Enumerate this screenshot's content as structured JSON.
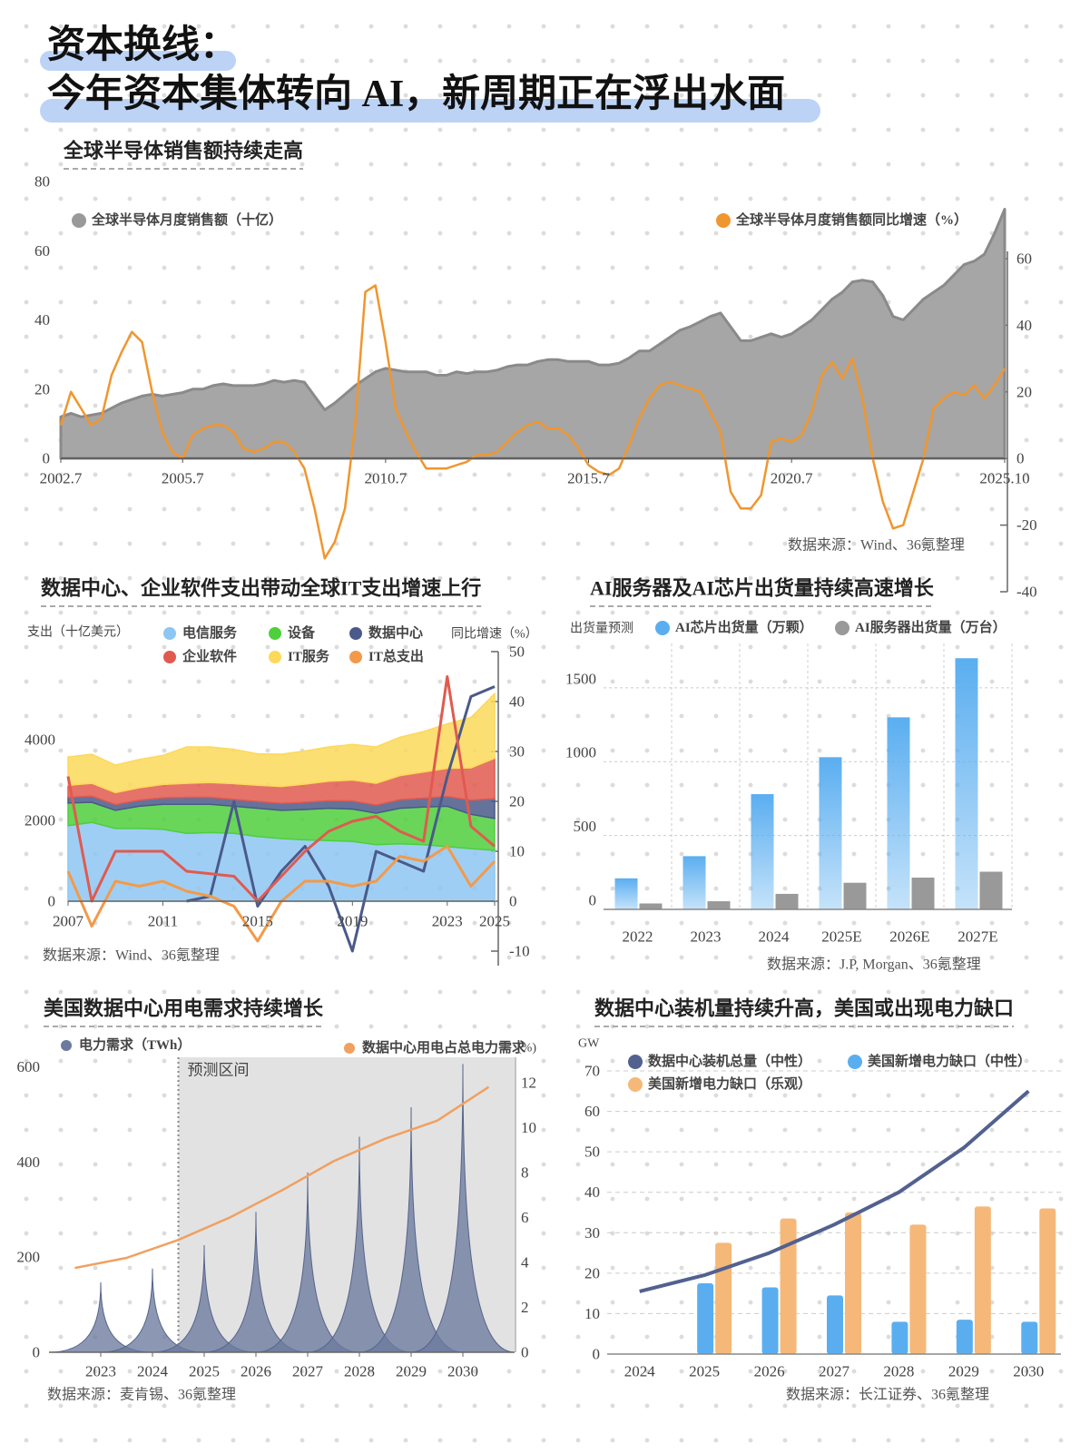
{
  "header": {
    "title_lines": [
      "资本换线：",
      "今年资本集体转向 AI，新周期正在浮出水面"
    ]
  },
  "chart_data": [
    {
      "type": "area",
      "title": "全球半导体销售额持续走高",
      "source": "数据来源：Wind、36氪整理",
      "x": [
        2002.5,
        2002.75,
        2003,
        2003.25,
        2003.5,
        2003.75,
        2004,
        2004.25,
        2004.5,
        2004.75,
        2005,
        2005.25,
        2005.5,
        2005.75,
        2006,
        2006.25,
        2006.5,
        2006.75,
        2007,
        2007.25,
        2007.5,
        2007.75,
        2008,
        2008.25,
        2008.5,
        2008.75,
        2009,
        2009.25,
        2009.5,
        2009.75,
        2010,
        2010.25,
        2010.5,
        2010.75,
        2011,
        2011.25,
        2011.5,
        2011.75,
        2012,
        2012.25,
        2012.5,
        2012.75,
        2013,
        2013.25,
        2013.5,
        2013.75,
        2014,
        2014.25,
        2014.5,
        2014.75,
        2015,
        2015.25,
        2015.5,
        2015.75,
        2016,
        2016.25,
        2016.5,
        2016.75,
        2017,
        2017.25,
        2017.5,
        2017.75,
        2018,
        2018.25,
        2018.5,
        2018.75,
        2019,
        2019.25,
        2019.5,
        2019.75,
        2020,
        2020.25,
        2020.5,
        2020.75,
        2021,
        2021.25,
        2021.5,
        2021.75,
        2022,
        2022.25,
        2022.5,
        2022.75,
        2023,
        2023.25,
        2023.5,
        2023.75,
        2024,
        2024.25,
        2024.5,
        2024.75,
        2025,
        2025.25,
        2025.5,
        2025.75
      ],
      "series": [
        {
          "name": "全球半导体月度销售额（十亿）",
          "color": "#a6a6a6",
          "values": [
            12,
            13,
            12,
            12.5,
            13,
            14.5,
            16,
            17,
            18,
            18.5,
            18,
            18.5,
            19,
            20,
            20,
            21,
            21.5,
            21,
            21,
            21,
            21.5,
            22.5,
            22,
            22.5,
            22,
            18,
            14,
            16,
            18.5,
            21,
            23,
            25,
            26,
            25.5,
            25,
            25,
            25,
            24,
            24,
            25,
            24.5,
            25,
            25,
            25.5,
            26.5,
            27,
            27,
            28,
            28.5,
            28.5,
            28,
            28,
            28,
            27,
            27,
            27.5,
            29,
            31,
            31,
            33,
            35,
            37,
            38,
            39.5,
            41,
            42,
            38,
            34,
            34,
            35,
            36,
            35,
            36,
            38,
            40,
            43,
            46,
            48,
            51,
            51.5,
            51,
            47,
            41,
            40,
            43,
            46,
            48,
            50,
            53,
            56,
            57,
            59,
            65,
            72
          ]
        },
        {
          "name": "全球半导体月度销售额同比增速（%）",
          "color": "#f0962e",
          "axis": "y2",
          "values": [
            10,
            20,
            15,
            10,
            12,
            25,
            32,
            38,
            35,
            20,
            8,
            2,
            0,
            7,
            9,
            10,
            10,
            8,
            3,
            2,
            3,
            5,
            5,
            2,
            -3,
            -15,
            -30,
            -25,
            -15,
            10,
            50,
            52,
            35,
            15,
            8,
            2,
            -3,
            -3,
            -3,
            -2,
            -1,
            1,
            1,
            2,
            5,
            8,
            10,
            11,
            9,
            9,
            7,
            3,
            -2,
            -4,
            -5,
            -3,
            4,
            12,
            18,
            22,
            23,
            22,
            21,
            20,
            14,
            8,
            -10,
            -15,
            -15,
            -11,
            5,
            6,
            5,
            7,
            14,
            25,
            29,
            24,
            30,
            18,
            0,
            -13,
            -21,
            -20,
            -10,
            0,
            15,
            18,
            20,
            19,
            22,
            18,
            22,
            27
          ]
        }
      ],
      "xlim": [
        2002.5,
        2025.75
      ],
      "xticks": [
        {
          "value": 2002.5,
          "label": "2002.7"
        },
        {
          "value": 2005.5,
          "label": "2005.7"
        },
        {
          "value": 2010.5,
          "label": "2010.7"
        },
        {
          "value": 2015.5,
          "label": "2015.7"
        },
        {
          "value": 2020.5,
          "label": "2020.7"
        },
        {
          "value": 2025.75,
          "label": "2025.10"
        }
      ],
      "ylim": [
        0,
        80
      ],
      "yticks": [
        0,
        20,
        40,
        60,
        80
      ],
      "y2lim": [
        -40,
        60
      ],
      "y2ticks": [
        -40,
        -20,
        0,
        20,
        40,
        60
      ]
    },
    {
      "type": "stacked",
      "title": "数据中心、企业软件支出带动全球IT支出增速上行",
      "source": "数据来源：Wind、36氪整理",
      "y_label": "支出（十亿美元）",
      "y2_label": "同比增速（%）",
      "x": [
        2007,
        2008,
        2009,
        2010,
        2011,
        2012,
        2013,
        2014,
        2015,
        2016,
        2017,
        2018,
        2019,
        2020,
        2021,
        2022,
        2023,
        2024,
        2025
      ],
      "xlim": [
        2007,
        2025
      ],
      "xticks": [
        2007,
        2011,
        2015,
        2019,
        2023,
        2025
      ],
      "series": [
        {
          "name": "电信服务",
          "color": "#8ec5f2",
          "values": [
            1870,
            1950,
            1800,
            1800,
            1780,
            1680,
            1700,
            1680,
            1600,
            1550,
            1520,
            1500,
            1480,
            1400,
            1420,
            1400,
            1350,
            1300,
            1260
          ]
        },
        {
          "name": "设备",
          "color": "#4fcf3c",
          "values": [
            560,
            500,
            450,
            550,
            620,
            720,
            700,
            670,
            700,
            700,
            750,
            800,
            800,
            780,
            880,
            930,
            1000,
            850,
            790
          ]
        },
        {
          "name": "数据中心",
          "color": "#4a5a8a",
          "values": [
            140,
            150,
            140,
            150,
            160,
            170,
            170,
            170,
            170,
            170,
            180,
            190,
            200,
            200,
            210,
            220,
            240,
            350,
            490
          ],
          "y2_values": [
            null,
            null,
            null,
            null,
            null,
            0,
            1,
            20,
            -1,
            6,
            11,
            3,
            -10,
            10,
            8,
            6,
            25,
            41,
            43
          ]
        },
        {
          "name": "企业软件",
          "color": "#e05a50",
          "values": [
            300,
            320,
            300,
            310,
            330,
            350,
            370,
            390,
            400,
            420,
            450,
            480,
            520,
            540,
            600,
            650,
            700,
            800,
            1000
          ],
          "y2_values": [
            25,
            0,
            10,
            10,
            10,
            6,
            5.5,
            5,
            0,
            5,
            10,
            14,
            16,
            17,
            14,
            12,
            45,
            15,
            11
          ]
        },
        {
          "name": "IT服务",
          "color": "#fcd95a",
          "values": [
            700,
            720,
            680,
            700,
            720,
            900,
            880,
            850,
            780,
            800,
            820,
            850,
            880,
            900,
            950,
            1000,
            1100,
            1250,
            1600
          ]
        },
        {
          "name": "IT总支出",
          "color": "#f29a4a",
          "y2_values": [
            6,
            -5,
            4,
            3,
            4,
            2,
            1,
            -1,
            -8,
            0,
            4,
            4,
            3,
            4,
            9,
            8,
            11,
            3,
            8
          ]
        }
      ],
      "ylim": [
        0,
        6000
      ],
      "yticks": [
        0,
        2000,
        4000
      ],
      "y2lim": [
        -10,
        50
      ],
      "y2ticks": [
        -10,
        0,
        10,
        20,
        30,
        40,
        50
      ]
    },
    {
      "type": "bar",
      "title": "AI服务器及AI芯片出货量持续高速增长",
      "source": "数据来源：J.P, Morgan、36氪整理",
      "y_label": "出货量预测",
      "categories": [
        "2022",
        "2023",
        "2024",
        "2025E",
        "2026E",
        "2027E"
      ],
      "series": [
        {
          "name": "AI芯片出货量（万颗）",
          "color": "#5aaef0",
          "values": [
            210,
            360,
            780,
            1030,
            1300,
            1700
          ]
        },
        {
          "name": "AI服务器出货量（万台）",
          "color": "#999999",
          "values": [
            40,
            55,
            105,
            180,
            215,
            255
          ]
        }
      ],
      "ylim": [
        0,
        1800
      ],
      "yticks": [
        0,
        500,
        1000,
        1500
      ],
      "grid": true
    },
    {
      "type": "spike",
      "title": "美国数据中心用电需求持续增长",
      "source": "数据来源：麦肯锡、36氪整理",
      "x": [
        2023,
        2024,
        2025,
        2026,
        2027,
        2028,
        2029,
        2030
      ],
      "series": [
        {
          "name": "电力需求（TWh）",
          "color": "#6b7a9e",
          "values": [
            147,
            176,
            225,
            295,
            378,
            453,
            515,
            606
          ]
        },
        {
          "name": "数据中心用电占总电力需求",
          "color": "#f0a060",
          "axis": "y2",
          "x": [
            2022.5,
            2023.5,
            2024.5,
            2025.5,
            2026.5,
            2027.5,
            2028.5,
            2029.5,
            2030.5
          ],
          "values": [
            3.75,
            4.2,
            5.0,
            6.0,
            7.2,
            8.5,
            9.5,
            10.3,
            11.8
          ]
        }
      ],
      "shade": {
        "label": "预测区间",
        "from": 2024.5
      },
      "xlim": [
        2022,
        2031
      ],
      "xticks": [
        2023,
        2024,
        2025,
        2026,
        2027,
        2028,
        2029,
        2030
      ],
      "ylim": [
        0,
        620
      ],
      "yticks": [
        0,
        200,
        400,
        600
      ],
      "y2lim": [
        0,
        13
      ],
      "y2ticks": [
        0,
        2,
        4,
        6,
        8,
        10,
        12
      ],
      "y2_label": "(%)"
    },
    {
      "type": "combo",
      "title": "数据中心装机量持续升高，美国或出现电力缺口",
      "source": "数据来源：长江证券、36氪整理",
      "y_label": "GW",
      "categories": [
        "2024",
        "2025",
        "2026",
        "2027",
        "2028",
        "2029",
        "2030"
      ],
      "line": {
        "name": "数据中心装机总量（中性）",
        "color": "#52618f",
        "values": [
          15.5,
          19.5,
          25,
          32,
          40,
          51,
          65
        ]
      },
      "series": [
        {
          "name": "美国新增电力缺口（中性）",
          "color": "#5aaef0",
          "values": [
            null,
            17.5,
            16.5,
            14.5,
            8,
            8.5,
            8
          ]
        },
        {
          "name": "美国新增电力缺口（乐观）",
          "color": "#f5b878",
          "values": [
            null,
            27.5,
            33.5,
            35,
            32,
            36.5,
            36
          ]
        }
      ],
      "ylim": [
        0,
        70
      ],
      "yticks": [
        0,
        10,
        20,
        30,
        40,
        50,
        60,
        70
      ],
      "grid": true
    }
  ]
}
